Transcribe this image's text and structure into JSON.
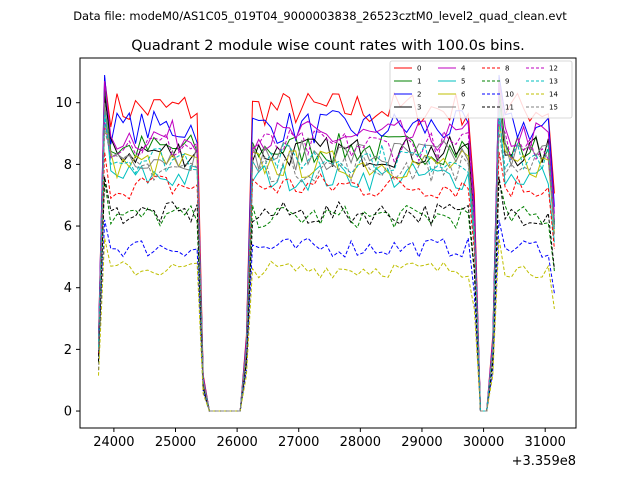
{
  "header": {
    "filename_text": "Data file: modeM0/AS1C05_019T04_9000003838_26523cztM0_level2_quad_clean.evt"
  },
  "chart_data": {
    "type": "line",
    "title": "Quadrant 2 module wise count rates with 100.0s bins.",
    "xlabel": "",
    "ylabel": "",
    "x_offset_text": "+3.359e8",
    "xlim": [
      23450,
      31500
    ],
    "ylim": [
      -0.55,
      11.45
    ],
    "x_ticks": [
      24000,
      25000,
      26000,
      27000,
      28000,
      29000,
      30000,
      31000
    ],
    "y_ticks": [
      0,
      2,
      4,
      6,
      8,
      10
    ],
    "grid": false,
    "legend_placement": "top-right",
    "x": [
      23750,
      23850,
      23950,
      24050,
      24150,
      24250,
      24350,
      24450,
      24550,
      24650,
      24750,
      24850,
      24950,
      25050,
      25150,
      25250,
      25350,
      25450,
      25550,
      25650,
      25750,
      25850,
      25950,
      26050,
      26150,
      26250,
      26350,
      26450,
      26550,
      26650,
      26750,
      26850,
      26950,
      27050,
      27150,
      27250,
      27350,
      27450,
      27550,
      27650,
      27750,
      27850,
      27950,
      28050,
      28150,
      28250,
      28350,
      28450,
      28550,
      28650,
      28750,
      28850,
      28950,
      29050,
      29150,
      29250,
      29350,
      29450,
      29550,
      29650,
      29750,
      29850,
      29950,
      30050,
      30150,
      30250,
      30350,
      30450,
      30550,
      30650,
      30750,
      30850,
      30950,
      31050,
      31150
    ],
    "active_segments": [
      [
        23750,
        25450
      ],
      [
        26150,
        29850
      ],
      [
        30150,
        31150
      ]
    ],
    "series": [
      {
        "name": "0",
        "color": "#ff0000",
        "dashed": false,
        "level": 9.8,
        "peak": 10.8
      },
      {
        "name": "1",
        "color": "#008000",
        "dashed": false,
        "level": 8.5,
        "peak": 10.5
      },
      {
        "name": "2",
        "color": "#0000ff",
        "dashed": false,
        "level": 9.2,
        "peak": 10.9
      },
      {
        "name": "3",
        "color": "#000000",
        "dashed": false,
        "level": 8.4,
        "peak": 10.2
      },
      {
        "name": "4",
        "color": "#bf00bf",
        "dashed": false,
        "level": 8.9,
        "peak": 10.7
      },
      {
        "name": "5",
        "color": "#00bfbf",
        "dashed": false,
        "level": 7.6,
        "peak": 9.9
      },
      {
        "name": "6",
        "color": "#bfbf00",
        "dashed": false,
        "level": 8.0,
        "peak": 9.3
      },
      {
        "name": "7",
        "color": "#808080",
        "dashed": false,
        "level": 8.3,
        "peak": 10.0
      },
      {
        "name": "8",
        "color": "#ff0000",
        "dashed": true,
        "level": 7.3,
        "peak": 8.4
      },
      {
        "name": "9",
        "color": "#008000",
        "dashed": true,
        "level": 6.3,
        "peak": 7.5
      },
      {
        "name": "10",
        "color": "#0000ff",
        "dashed": true,
        "level": 5.3,
        "peak": 6.2
      },
      {
        "name": "11",
        "color": "#000000",
        "dashed": true,
        "level": 6.4,
        "peak": 7.6
      },
      {
        "name": "12",
        "color": "#bf00bf",
        "dashed": true,
        "level": 8.6,
        "peak": 9.4
      },
      {
        "name": "13",
        "color": "#00bfbf",
        "dashed": true,
        "level": 8.2,
        "peak": 9.6
      },
      {
        "name": "14",
        "color": "#bfbf00",
        "dashed": true,
        "level": 4.6,
        "peak": 5.6
      },
      {
        "name": "15",
        "color": "#808080",
        "dashed": true,
        "level": 7.9,
        "peak": 9.1
      }
    ]
  }
}
